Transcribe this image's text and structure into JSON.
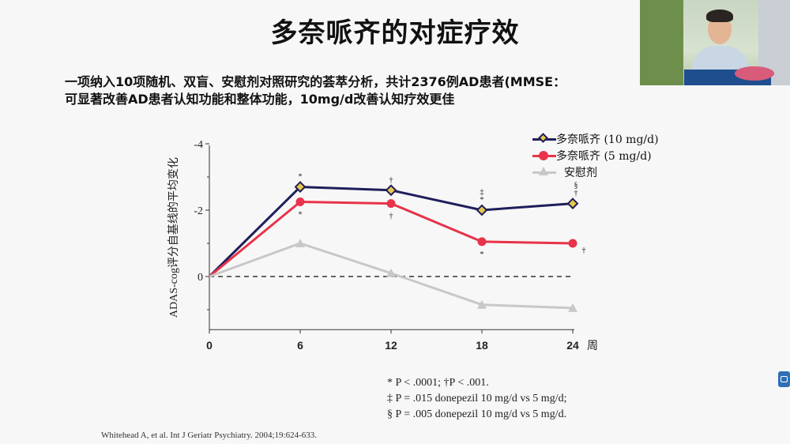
{
  "slide": {
    "title": "多奈哌齐的对症疗效",
    "subtitle_line1": "一项纳入10项随机、双盲、安慰剂对照研究的荟萃分析，共计2376例AD患者(MMSE：",
    "subtitle_line2": "可显著改善AD患者认知功能和整体功能，10mg/d改善认知疗效更佳"
  },
  "footnotes": [
    "* P < .0001; †P < .001.",
    "‡ P = .015 donepezil 10 mg/d vs 5 mg/d;",
    "§ P = .005 donepezil 10 mg/d vs 5 mg/d."
  ],
  "citation": "Whitehead A, et al. Int J Geriatr Psychiatry. 2004;19:624-633.",
  "chart_data": {
    "type": "line",
    "ylabel": "ADAS-cog评分自基线的平均变化",
    "xlabel": "周",
    "x": [
      0,
      6,
      12,
      18,
      24
    ],
    "xticks": [
      "0",
      "6",
      "12",
      "18",
      "24"
    ],
    "yticks": [
      "-4",
      "-2",
      "0"
    ],
    "ylim": [
      1.6,
      -4.0
    ],
    "y_reversed": true,
    "reference_line": 0,
    "legend_position": "top-right",
    "series": [
      {
        "name": "多奈哌齐 (10 mg/d)",
        "color": "#1f1f5c",
        "marker": "diamond",
        "marker_fill": "#e8c84a",
        "values": [
          0,
          -2.7,
          -2.6,
          -2.0,
          -2.2
        ],
        "annotations": [
          [],
          [
            "*"
          ],
          [
            "†"
          ],
          [
            "‡",
            "*"
          ],
          [
            "§",
            "†"
          ]
        ]
      },
      {
        "name": "多奈哌齐 (5 mg/d)",
        "color": "#e8334a",
        "marker": "circle",
        "marker_fill": "#e8334a",
        "values": [
          0,
          -2.25,
          -2.2,
          -1.05,
          -1.0
        ],
        "annotations": [
          [],
          [
            "*"
          ],
          [
            "†"
          ],
          [
            "*"
          ],
          [
            "†"
          ]
        ]
      },
      {
        "name": "安慰剂",
        "color": "#c8c8c8",
        "marker": "triangle",
        "marker_fill": "#c8c8c8",
        "values": [
          0,
          -1.0,
          -0.1,
          0.85,
          0.95
        ],
        "annotations": [
          [],
          [],
          [],
          [],
          []
        ]
      }
    ]
  }
}
